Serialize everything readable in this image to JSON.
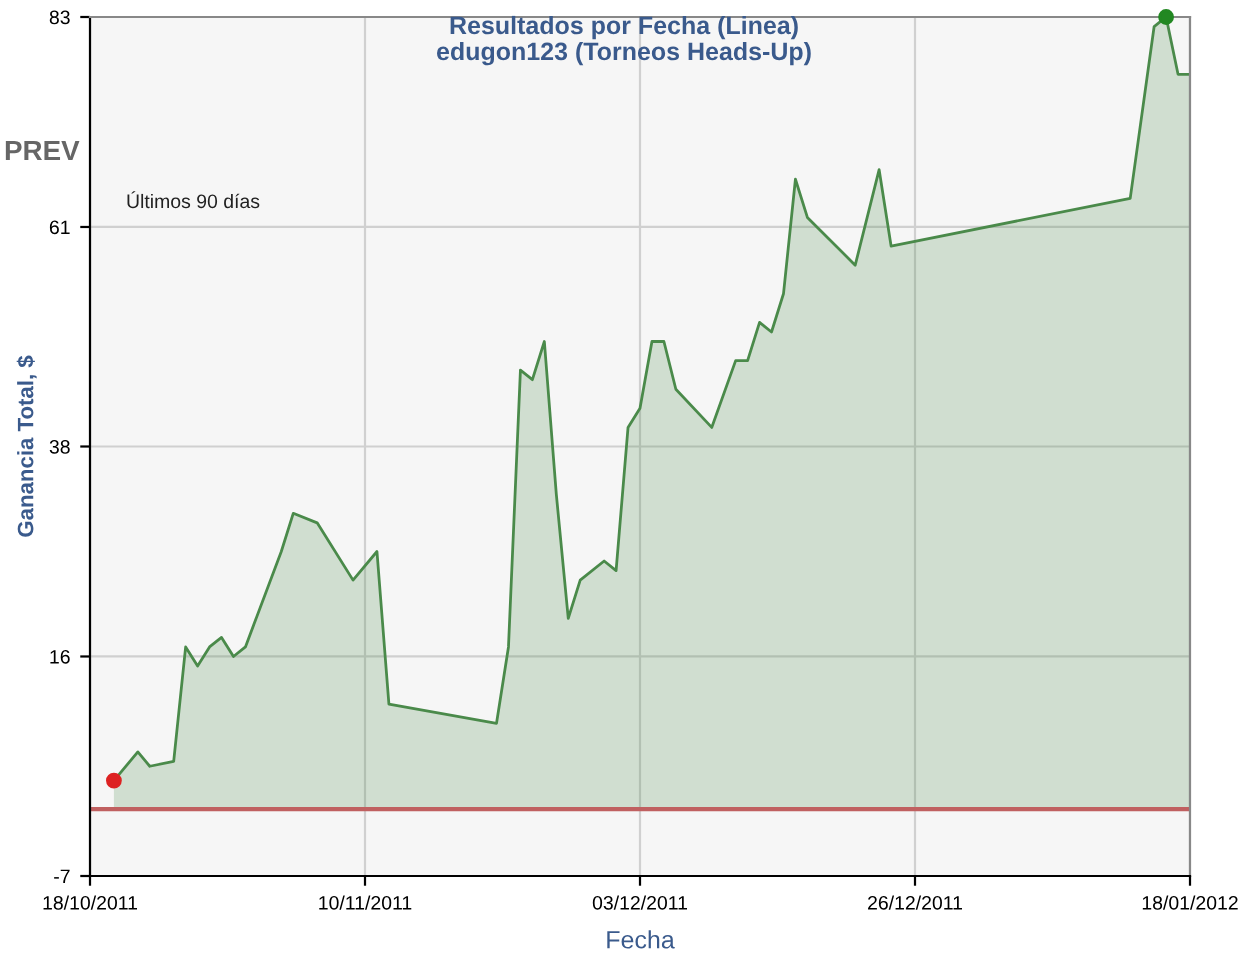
{
  "chart_data": {
    "type": "area",
    "title": "Resultados por Fecha (Linea)",
    "subtitle": "edugon123 (Torneos Heads-Up)",
    "xlabel": "Fecha",
    "ylabel": "Ganancia Total, $",
    "annotations": [
      "PREV",
      "Últimos 90 días"
    ],
    "xlim": [
      "2011-10-18",
      "2012-01-18"
    ],
    "xticks": [
      {
        "value": "2011-10-18",
        "label": "18/10/2011"
      },
      {
        "value": "2011-11-10",
        "label": "10/11/2011"
      },
      {
        "value": "2011-12-03",
        "label": "03/12/2011"
      },
      {
        "value": "2011-12-26",
        "label": "26/12/2011"
      },
      {
        "value": "2012-01-18",
        "label": "18/01/2012"
      }
    ],
    "ylim": [
      -7,
      83
    ],
    "yticks": [
      -7,
      16,
      38,
      61,
      83
    ],
    "grid": true,
    "ref_lines": [
      {
        "axis": "y",
        "value": 0,
        "color": "#c06060"
      }
    ],
    "series": [
      {
        "color": "#4a8a4a",
        "x": [
          "2011-10-20",
          "2011-10-22",
          "2011-10-23",
          "2011-10-25",
          "2011-10-26",
          "2011-10-27",
          "2011-10-28",
          "2011-10-29",
          "2011-10-30",
          "2011-10-31",
          "2011-11-03",
          "2011-11-04",
          "2011-11-06",
          "2011-11-09",
          "2011-11-11",
          "2011-11-12",
          "2011-11-21",
          "2011-11-22",
          "2011-11-23",
          "2011-11-24",
          "2011-11-25",
          "2011-11-26",
          "2011-11-27",
          "2011-11-28",
          "2011-11-30",
          "2011-12-01",
          "2011-12-02",
          "2011-12-03",
          "2011-12-04",
          "2011-12-05",
          "2011-12-06",
          "2011-12-09",
          "2011-12-11",
          "2011-12-12",
          "2011-12-13",
          "2011-12-14",
          "2011-12-15",
          "2011-12-16",
          "2011-12-17",
          "2011-12-21",
          "2011-12-23",
          "2011-12-24",
          "2012-01-13",
          "2012-01-15",
          "2012-01-16",
          "2012-01-17",
          "2012-01-18"
        ],
        "values": [
          3,
          6,
          4.5,
          5,
          17,
          15,
          17,
          18,
          16,
          17,
          27,
          31,
          30,
          24,
          27,
          11,
          9,
          17,
          46,
          45,
          49,
          33,
          20,
          24,
          26,
          25,
          40,
          42,
          49,
          49,
          44,
          40,
          47,
          47,
          51,
          50,
          54,
          66,
          62,
          57,
          67,
          59,
          64,
          82,
          83,
          77,
          77
        ]
      },
      {
        "type": "scatter",
        "x": [
          "2011-10-20",
          "2012-01-16"
        ],
        "values": [
          3,
          83
        ],
        "colors": [
          "#dd2222",
          "#228822"
        ]
      }
    ]
  }
}
